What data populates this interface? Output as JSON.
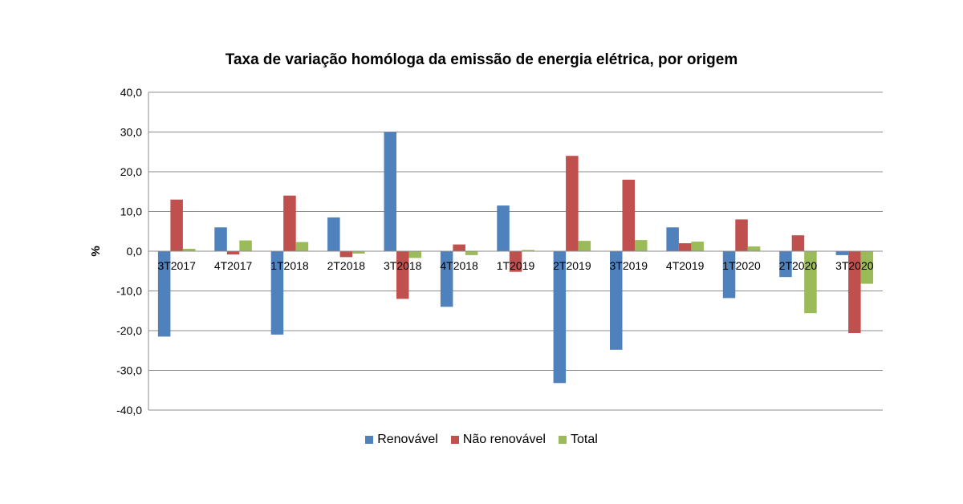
{
  "chart_data": {
    "type": "bar",
    "title": "Taxa de variação homóloga da emissão de energia elétrica, por origem",
    "ylabel": "%",
    "xlabel": "",
    "ylim": [
      -40,
      40
    ],
    "yticks": [
      "40,0",
      "30,0",
      "20,0",
      "10,0",
      "0,0",
      "-10,0",
      "-20,0",
      "-30,0",
      "-40,0"
    ],
    "grid": true,
    "legend_position": "bottom",
    "categories": [
      "3T2017",
      "4T2017",
      "1T2018",
      "2T2018",
      "3T2018",
      "4T2018",
      "1T2019",
      "2T2019",
      "3T2019",
      "4T2019",
      "1T2020",
      "2T2020",
      "3T2020"
    ],
    "series": [
      {
        "name": "Renovável",
        "color": "#4f81bd",
        "values": [
          -21.5,
          6.0,
          -21.0,
          8.5,
          30.0,
          -14.0,
          11.5,
          -33.2,
          -24.8,
          6.0,
          -11.8,
          -6.5,
          -1.0
        ]
      },
      {
        "name": "Não renovável",
        "color": "#c0504d",
        "values": [
          13.0,
          -0.8,
          14.0,
          -1.5,
          -12.0,
          1.7,
          -5.2,
          24.0,
          18.0,
          2.0,
          8.0,
          4.0,
          -20.6
        ]
      },
      {
        "name": "Total",
        "color": "#9bbb59",
        "values": [
          0.6,
          2.7,
          2.3,
          -0.6,
          -1.7,
          -1.0,
          0.3,
          2.6,
          2.8,
          2.4,
          1.2,
          -15.6,
          -8.2
        ]
      }
    ]
  }
}
